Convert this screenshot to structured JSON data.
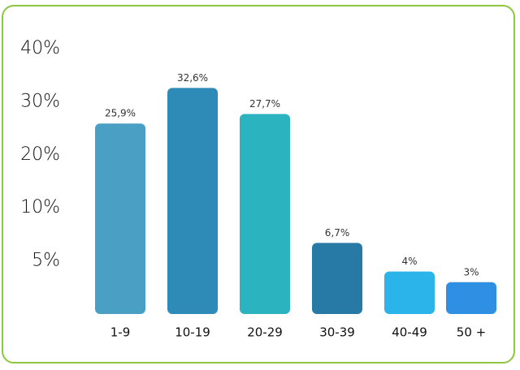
{
  "chart_data": {
    "type": "bar",
    "categories": [
      "1-9",
      "10-19",
      "20-29",
      "30-39",
      "40-49",
      "50 +"
    ],
    "values": [
      25.9,
      32.6,
      27.7,
      6.7,
      4,
      3
    ],
    "value_labels": [
      "25,9%",
      "32,6%",
      "27,7%",
      "6,7%",
      "4%",
      "3%"
    ],
    "colors": [
      "#4a9fc4",
      "#2e8bb8",
      "#2bb3bf",
      "#2779a6",
      "#2ab4ea",
      "#2f8fe2"
    ],
    "ylim": [
      0,
      40
    ],
    "yticks": [
      {
        "value": 5,
        "label": "5%"
      },
      {
        "value": 10,
        "label": "10%"
      },
      {
        "value": 20,
        "label": "20%"
      },
      {
        "value": 30,
        "label": "30%"
      },
      {
        "value": 40,
        "label": "40%"
      }
    ],
    "grid": false
  }
}
